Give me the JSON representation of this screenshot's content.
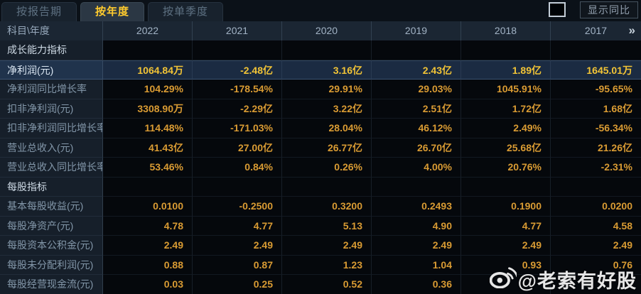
{
  "tabs": [
    {
      "label": "按报告期",
      "active": false
    },
    {
      "label": "按年度",
      "active": true
    },
    {
      "label": "按单季度",
      "active": false
    }
  ],
  "controls": {
    "yoy_checkbox_checked": false,
    "yoy_label": "显示同比"
  },
  "table": {
    "corner_header": "科目\\年度",
    "year_columns": [
      "2022",
      "2021",
      "2020",
      "2019",
      "2018",
      "2017"
    ],
    "more_years_icon": "»",
    "rows": [
      {
        "type": "section",
        "highlight": false,
        "label": "成长能力指标",
        "values": [
          "",
          "",
          "",
          "",
          "",
          ""
        ]
      },
      {
        "type": "data",
        "highlight": true,
        "label": "净利润(元)",
        "values": [
          "1064.84万",
          "-2.48亿",
          "3.16亿",
          "2.43亿",
          "1.89亿",
          "1645.01万"
        ]
      },
      {
        "type": "data",
        "highlight": false,
        "label": "净利润同比增长率",
        "values": [
          "104.29%",
          "-178.54%",
          "29.91%",
          "29.03%",
          "1045.91%",
          "-95.65%"
        ]
      },
      {
        "type": "data",
        "highlight": false,
        "label": "扣非净利润(元)",
        "values": [
          "3308.90万",
          "-2.29亿",
          "3.22亿",
          "2.51亿",
          "1.72亿",
          "1.68亿"
        ]
      },
      {
        "type": "data",
        "highlight": false,
        "label": "扣非净利润同比增长率",
        "values": [
          "114.48%",
          "-171.03%",
          "28.04%",
          "46.12%",
          "2.49%",
          "-56.34%"
        ]
      },
      {
        "type": "data",
        "highlight": false,
        "label": "营业总收入(元)",
        "values": [
          "41.43亿",
          "27.00亿",
          "26.77亿",
          "26.70亿",
          "25.68亿",
          "21.26亿"
        ]
      },
      {
        "type": "data",
        "highlight": false,
        "label": "营业总收入同比增长率",
        "values": [
          "53.46%",
          "0.84%",
          "0.26%",
          "4.00%",
          "20.76%",
          "-2.31%"
        ]
      },
      {
        "type": "section",
        "highlight": false,
        "label": "每股指标",
        "values": [
          "",
          "",
          "",
          "",
          "",
          ""
        ]
      },
      {
        "type": "data",
        "highlight": false,
        "label": "基本每股收益(元)",
        "values": [
          "0.0100",
          "-0.2500",
          "0.3200",
          "0.2493",
          "0.1900",
          "0.0200"
        ]
      },
      {
        "type": "data",
        "highlight": false,
        "label": "每股净资产(元)",
        "values": [
          "4.78",
          "4.77",
          "5.13",
          "4.90",
          "4.77",
          "4.58"
        ]
      },
      {
        "type": "data",
        "highlight": false,
        "label": "每股资本公积金(元)",
        "values": [
          "2.49",
          "2.49",
          "2.49",
          "2.49",
          "2.49",
          "2.49"
        ]
      },
      {
        "type": "data",
        "highlight": false,
        "label": "每股未分配利润(元)",
        "values": [
          "0.88",
          "0.87",
          "1.23",
          "1.04",
          "0.93",
          "0.76"
        ]
      },
      {
        "type": "data",
        "highlight": false,
        "label": "每股经营现金流(元)",
        "values": [
          "0.03",
          "0.25",
          "0.52",
          "0.36",
          "",
          ""
        ]
      }
    ]
  },
  "watermark": {
    "icon": "weibo-icon",
    "text": "@老索有好股"
  },
  "colors": {
    "value_gold": "#d99b33",
    "highlight_gold": "#f2c436",
    "active_tab_text": "#ffcb2e",
    "highlight_row_bg": "#1b2b42",
    "header_bg": "#1b2633",
    "label_bg": "#161f2a"
  }
}
